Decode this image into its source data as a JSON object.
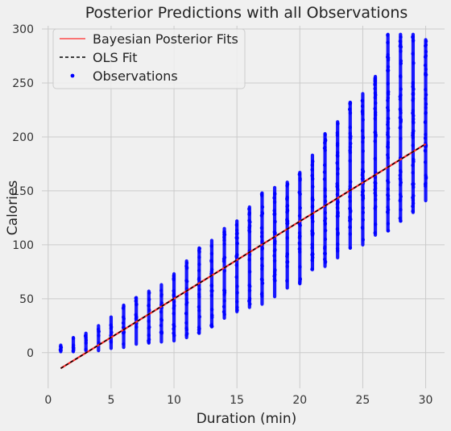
{
  "chart_data": {
    "type": "scatter",
    "title": "Posterior Predictions with all Observations",
    "xlabel": "Duration (min)",
    "ylabel": "Calories",
    "xlim": [
      -0.5,
      31.5
    ],
    "ylim": [
      -33,
      303
    ],
    "xticks": [
      0,
      5,
      10,
      15,
      20,
      25,
      30
    ],
    "yticks": [
      0,
      50,
      100,
      150,
      200,
      250,
      300
    ],
    "grid": true,
    "legend_position": "top-left",
    "background": "#f0f0f0",
    "series": [
      {
        "name": "Bayesian Posterior Fits",
        "kind": "line",
        "color": "#ff2a2a",
        "x": [
          1,
          30
        ],
        "y": [
          -14.5,
          193.5
        ]
      },
      {
        "name": "OLS Fit",
        "kind": "dashed-line",
        "color": "#000000",
        "x": [
          1,
          30
        ],
        "y": [
          -14.5,
          193.5
        ]
      },
      {
        "name": "Observations",
        "kind": "scatter",
        "color": "#0000ff",
        "points": [
          {
            "x": 1,
            "y_min": 1,
            "y_max": 7
          },
          {
            "x": 2,
            "y_min": 1,
            "y_max": 14
          },
          {
            "x": 3,
            "y_min": 2,
            "y_max": 18
          },
          {
            "x": 4,
            "y_min": 2,
            "y_max": 25
          },
          {
            "x": 5,
            "y_min": 4,
            "y_max": 33
          },
          {
            "x": 6,
            "y_min": 5,
            "y_max": 44
          },
          {
            "x": 7,
            "y_min": 8,
            "y_max": 51
          },
          {
            "x": 8,
            "y_min": 9,
            "y_max": 57
          },
          {
            "x": 9,
            "y_min": 10,
            "y_max": 63
          },
          {
            "x": 10,
            "y_min": 11,
            "y_max": 73
          },
          {
            "x": 11,
            "y_min": 14,
            "y_max": 85
          },
          {
            "x": 12,
            "y_min": 18,
            "y_max": 97
          },
          {
            "x": 13,
            "y_min": 24,
            "y_max": 104
          },
          {
            "x": 14,
            "y_min": 32,
            "y_max": 115
          },
          {
            "x": 15,
            "y_min": 38,
            "y_max": 122
          },
          {
            "x": 16,
            "y_min": 42,
            "y_max": 135
          },
          {
            "x": 17,
            "y_min": 45,
            "y_max": 148
          },
          {
            "x": 18,
            "y_min": 52,
            "y_max": 153
          },
          {
            "x": 19,
            "y_min": 60,
            "y_max": 158
          },
          {
            "x": 20,
            "y_min": 64,
            "y_max": 167
          },
          {
            "x": 21,
            "y_min": 77,
            "y_max": 183
          },
          {
            "x": 22,
            "y_min": 80,
            "y_max": 203
          },
          {
            "x": 23,
            "y_min": 88,
            "y_max": 214
          },
          {
            "x": 24,
            "y_min": 97,
            "y_max": 232
          },
          {
            "x": 25,
            "y_min": 100,
            "y_max": 240
          },
          {
            "x": 26,
            "y_min": 109,
            "y_max": 256
          },
          {
            "x": 27,
            "y_min": 113,
            "y_max": 295
          },
          {
            "x": 28,
            "y_min": 122,
            "y_max": 295
          },
          {
            "x": 29,
            "y_min": 130,
            "y_max": 295
          },
          {
            "x": 30,
            "y_min": 141,
            "y_max": 290
          }
        ]
      }
    ]
  }
}
